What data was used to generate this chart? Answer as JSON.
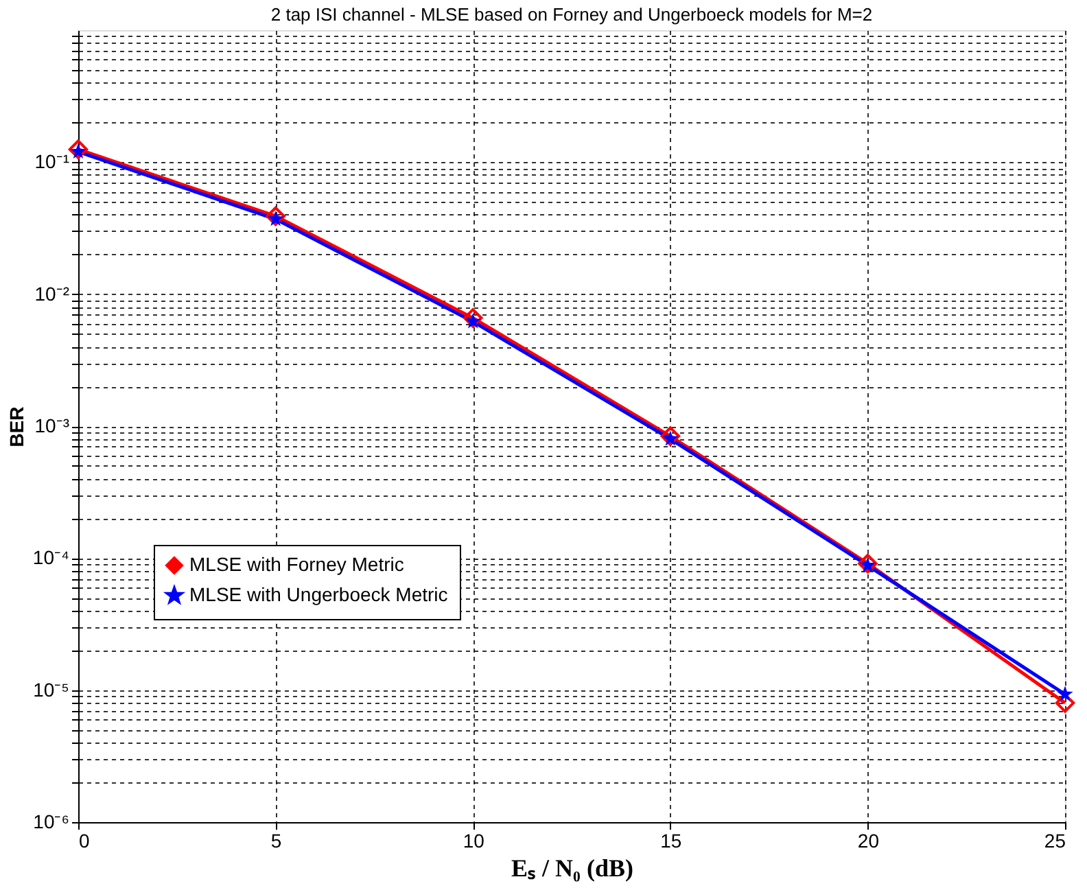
{
  "chart_data": {
    "type": "line",
    "title": "2 tap ISI channel - MLSE based on Forney and Ungerboeck models for M=2",
    "xlabel": "Eₛ / N₀ (dB)",
    "ylabel": "BER",
    "x": [
      0,
      5,
      10,
      15,
      20,
      25
    ],
    "series": [
      {
        "name": "MLSE with Forney Metric",
        "color": "#ff0000",
        "marker": "diamond",
        "values": [
          0.125,
          0.039,
          0.0066,
          0.00084,
          9.1e-05,
          8e-06
        ]
      },
      {
        "name": "MLSE with Ungerboeck Metric",
        "color": "#0000ff",
        "marker": "star",
        "values": [
          0.12,
          0.037,
          0.0062,
          0.0008,
          8.8e-05,
          9.3e-06
        ]
      }
    ],
    "log": true,
    "xlim": [
      0,
      25
    ],
    "xticks": [
      0,
      5,
      10,
      15,
      20,
      25
    ],
    "ylim": [
      1e-06,
      1
    ],
    "yticks": [
      {
        "value": 1e-06,
        "label": "10⁻⁶"
      },
      {
        "value": 2e-06,
        "label": null
      },
      {
        "value": 3e-06,
        "label": null
      },
      {
        "value": 4e-06,
        "label": null
      },
      {
        "value": 5e-06,
        "label": null
      },
      {
        "value": 6e-06,
        "label": null
      },
      {
        "value": 7e-06,
        "label": null
      },
      {
        "value": 8e-06,
        "label": null
      },
      {
        "value": 9e-06,
        "label": null
      },
      {
        "value": 1e-05,
        "label": "10⁻⁵"
      },
      {
        "value": 2e-05,
        "label": null
      },
      {
        "value": 3e-05,
        "label": null
      },
      {
        "value": 4e-05,
        "label": null
      },
      {
        "value": 5e-05,
        "label": null
      },
      {
        "value": 6e-05,
        "label": null
      },
      {
        "value": 7e-05,
        "label": null
      },
      {
        "value": 8e-05,
        "label": null
      },
      {
        "value": 9e-05,
        "label": null
      },
      {
        "value": 0.0001,
        "label": "10⁻⁴"
      },
      {
        "value": 0.0002,
        "label": null
      },
      {
        "value": 0.0003,
        "label": null
      },
      {
        "value": 0.0004,
        "label": null
      },
      {
        "value": 0.0005,
        "label": null
      },
      {
        "value": 0.0006,
        "label": null
      },
      {
        "value": 0.0007,
        "label": null
      },
      {
        "value": 0.0008,
        "label": null
      },
      {
        "value": 0.0009,
        "label": null
      },
      {
        "value": 0.001,
        "label": "10⁻³"
      },
      {
        "value": 0.002,
        "label": null
      },
      {
        "value": 0.003,
        "label": null
      },
      {
        "value": 0.004,
        "label": null
      },
      {
        "value": 0.005,
        "label": null
      },
      {
        "value": 0.006,
        "label": null
      },
      {
        "value": 0.007,
        "label": null
      },
      {
        "value": 0.008,
        "label": null
      },
      {
        "value": 0.009,
        "label": null
      },
      {
        "value": 0.01,
        "label": "10⁻²"
      },
      {
        "value": 0.02,
        "label": null
      },
      {
        "value": 0.03,
        "label": null
      },
      {
        "value": 0.04,
        "label": null
      },
      {
        "value": 0.05,
        "label": null
      },
      {
        "value": 0.06,
        "label": null
      },
      {
        "value": 0.07,
        "label": null
      },
      {
        "value": 0.08,
        "label": null
      },
      {
        "value": 0.09,
        "label": null
      },
      {
        "value": 0.1,
        "label": "10⁻¹"
      },
      {
        "value": 0.2,
        "label": null
      },
      {
        "value": 0.3,
        "label": null
      },
      {
        "value": 0.4,
        "label": null
      },
      {
        "value": 0.5,
        "label": null
      },
      {
        "value": 0.6,
        "label": null
      },
      {
        "value": 0.7,
        "label": null
      },
      {
        "value": 0.8,
        "label": null
      },
      {
        "value": 0.9,
        "label": null
      }
    ],
    "grid": true,
    "legend": "bottom left",
    "line_style": "solid"
  }
}
